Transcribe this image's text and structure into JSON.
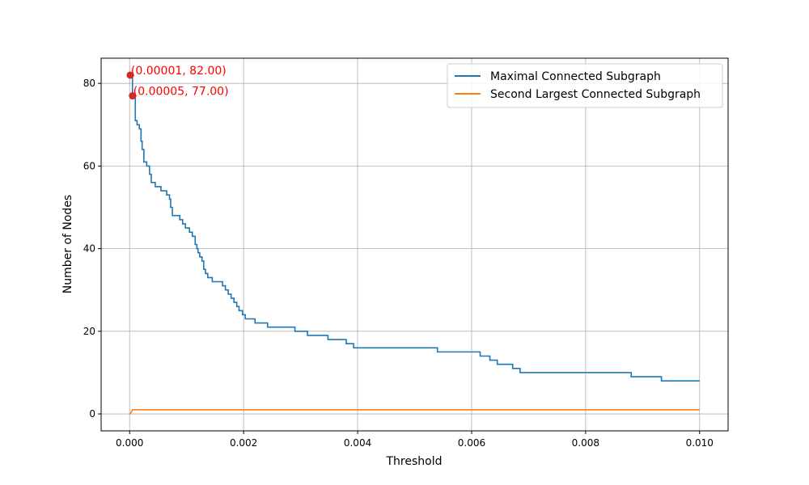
{
  "chart_data": {
    "type": "line",
    "xlabel": "Threshold",
    "ylabel": "Number of Nodes",
    "xlim": [
      -0.0005,
      0.0105
    ],
    "ylim": [
      -4.1,
      86.1
    ],
    "xticks": [
      0.0,
      0.002,
      0.004,
      0.006,
      0.008,
      0.01
    ],
    "xtick_labels": [
      "0.000",
      "0.002",
      "0.004",
      "0.006",
      "0.008",
      "0.010"
    ],
    "yticks": [
      0,
      20,
      40,
      60,
      80
    ],
    "ytick_labels": [
      "0",
      "20",
      "40",
      "60",
      "80"
    ],
    "grid": true,
    "legend_position": "top-right",
    "series": [
      {
        "name": "Maximal Connected Subgraph",
        "color": "#1f77b4",
        "step": true,
        "x": [
          0.0,
          1e-05,
          5e-05,
          0.0001,
          0.00013,
          0.00017,
          0.0002,
          0.00022,
          0.00025,
          0.00028,
          0.0003,
          0.00035,
          0.00038,
          0.0004,
          0.00045,
          0.0005,
          0.00055,
          0.0006,
          0.00065,
          0.0007,
          0.00072,
          0.00075,
          0.0008,
          0.00088,
          0.00093,
          0.00098,
          0.00105,
          0.0011,
          0.00115,
          0.00118,
          0.0012,
          0.00123,
          0.00127,
          0.0013,
          0.00133,
          0.00137,
          0.0014,
          0.00145,
          0.0015,
          0.00163,
          0.00168,
          0.00173,
          0.00178,
          0.00183,
          0.00188,
          0.00192,
          0.00198,
          0.00203,
          0.0022,
          0.00242,
          0.0029,
          0.00312,
          0.00348,
          0.0038,
          0.00393,
          0.0054,
          0.00615,
          0.00632,
          0.00645,
          0.00672,
          0.00685,
          0.0088,
          0.00933,
          0.01
        ],
        "values": [
          82,
          82,
          77,
          71,
          70,
          69,
          66,
          64,
          61,
          61,
          60,
          58,
          56,
          56,
          55,
          55,
          54,
          54,
          53,
          52,
          50,
          48,
          48,
          47,
          46,
          45,
          44,
          43,
          41,
          40,
          39,
          38,
          37,
          35,
          34,
          33,
          33,
          32,
          32,
          31,
          30,
          29,
          28,
          27,
          26,
          25,
          24,
          23,
          22,
          21,
          20,
          19,
          18,
          17,
          16,
          15,
          14,
          13,
          12,
          11,
          10,
          9,
          8,
          8
        ]
      },
      {
        "name": "Second Largest Connected Subgraph",
        "color": "#ff7f0e",
        "step": false,
        "x": [
          0.0,
          1e-05,
          5e-05,
          0.01
        ],
        "values": [
          0,
          0,
          1,
          1
        ]
      }
    ],
    "annotations": [
      {
        "x": 1e-05,
        "y": 82,
        "text": "(0.00001, 82.00)",
        "color": "#ff0000"
      },
      {
        "x": 5e-05,
        "y": 77,
        "text": "(0.00005, 77.00)",
        "color": "#ff0000"
      }
    ]
  }
}
